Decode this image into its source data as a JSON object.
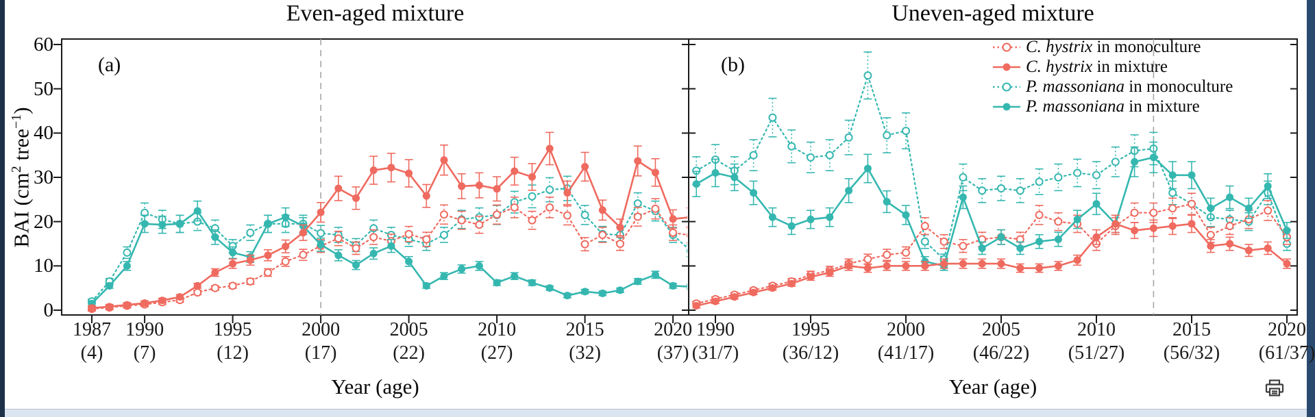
{
  "titles": {
    "panel_a": "Even-aged mixture",
    "panel_b": "Uneven-aged mixture"
  },
  "panel_labels": {
    "a": "(a)",
    "b": "(b)"
  },
  "axes": {
    "ylabel": {
      "pre": "BAI  (cm",
      "sup1": "2",
      "mid": " tree",
      "sup2": "−1",
      "post": ")"
    },
    "xlabel": "Year (age)",
    "y_ticks": [
      0,
      10,
      20,
      30,
      40,
      50,
      60
    ],
    "y_range": [
      0,
      60
    ]
  },
  "colors": {
    "c_hystrix": "#ef6a5f",
    "p_massoniana": "#35b7b0",
    "dashed_guide": "#a6a6a6",
    "axis": "#1a1a1a"
  },
  "legend": {
    "items": [
      {
        "species": "C. hystrix",
        "rest": " in monoculture",
        "color": "#ef6a5f",
        "marker": "open",
        "line": "dotted"
      },
      {
        "species": "C. hystrix",
        "rest": " in mixture",
        "color": "#ef6a5f",
        "marker": "filled",
        "line": "solid"
      },
      {
        "species": "P. massoniana",
        "rest": " in monoculture",
        "color": "#35b7b0",
        "marker": "open",
        "line": "dotted"
      },
      {
        "species": "P. massoniana",
        "rest": " in mixture",
        "color": "#35b7b0",
        "marker": "filled",
        "line": "solid"
      }
    ]
  },
  "chart_data": [
    {
      "type": "line",
      "panel": "a",
      "title": "Even-aged mixture",
      "ylabel": "BAI (cm2 tree-1)",
      "xlabel": "Year (age)",
      "ylim": [
        0,
        60
      ],
      "grid": false,
      "dashed_line_year": 2000,
      "x_tick_years": [
        1987,
        1990,
        1995,
        2000,
        2005,
        2010,
        2015,
        2020
      ],
      "x_tick_ages": [
        "(4)",
        "(7)",
        "(12)",
        "(17)",
        "(22)",
        "(27)",
        "(32)",
        "(37)"
      ],
      "years": [
        1987,
        1988,
        1989,
        1990,
        1991,
        1992,
        1993,
        1994,
        1995,
        1996,
        1997,
        1998,
        1999,
        2000,
        2001,
        2002,
        2003,
        2004,
        2005,
        2006,
        2007,
        2008,
        2009,
        2010,
        2011,
        2012,
        2013,
        2014,
        2015,
        2016,
        2017,
        2018,
        2019,
        2020,
        2021
      ],
      "series": [
        {
          "name": "C. hystrix in monoculture",
          "color": "#ef6a5f",
          "marker": "open",
          "line": "dotted",
          "values": [
            0.3,
            0.6,
            1.0,
            1.3,
            1.8,
            2.3,
            4.0,
            5.0,
            5.5,
            6.5,
            8.5,
            11.0,
            12.5,
            14.5,
            16.2,
            14.0,
            16.5,
            15.6,
            17.2,
            16.0,
            21.6,
            20.3,
            19.3,
            21.6,
            23.2,
            20.3,
            23.2,
            21.4,
            14.9,
            17.0,
            15.0,
            21.1,
            22.9,
            17.5,
            16.9
          ]
        },
        {
          "name": "C. hystrix in mixture",
          "color": "#ef6a5f",
          "marker": "filled",
          "line": "solid",
          "values": [
            0.5,
            0.8,
            1.2,
            1.6,
            2.2,
            3.0,
            5.5,
            8.5,
            10.5,
            11.3,
            12.4,
            14.4,
            17.5,
            22.1,
            27.5,
            25.3,
            31.6,
            32.2,
            30.9,
            25.8,
            33.9,
            28.0,
            28.2,
            27.4,
            31.4,
            30.1,
            36.5,
            26.5,
            32.4,
            22.6,
            18.7,
            33.7,
            31.1,
            20.6,
            21.0
          ]
        },
        {
          "name": "P. massoniana in monoculture",
          "color": "#35b7b0",
          "marker": "open",
          "line": "dotted",
          "values": [
            2.0,
            6.5,
            13.0,
            22.0,
            20.5,
            19.5,
            20.0,
            18.5,
            14.5,
            17.5,
            19.5,
            19.5,
            19.5,
            17.4,
            17.0,
            14.7,
            18.5,
            17.0,
            16.0,
            15.0,
            17.0,
            20.5,
            21.0,
            21.5,
            24.4,
            25.7,
            27.2,
            27.5,
            21.5,
            17.2,
            17.0,
            24.1,
            22.4,
            17.0,
            13.4
          ]
        },
        {
          "name": "P. massoniana in mixture",
          "color": "#35b7b0",
          "marker": "filled",
          "line": "solid",
          "values": [
            1.5,
            5.5,
            10.0,
            19.5,
            19.3,
            19.5,
            22.4,
            16.5,
            13.0,
            12.0,
            19.5,
            21.0,
            19.0,
            14.8,
            12.4,
            10.2,
            12.8,
            14.5,
            11.0,
            5.5,
            7.7,
            9.3,
            10.0,
            6.2,
            7.7,
            6.2,
            5.0,
            3.3,
            4.2,
            3.8,
            4.5,
            6.5,
            8.0,
            5.5,
            5.3
          ]
        }
      ],
      "error_bars": {
        "fraction": 0.1,
        "min": 0.5
      }
    },
    {
      "type": "line",
      "panel": "b",
      "title": "Uneven-aged mixture",
      "ylabel": "BAI (cm2 tree-1)",
      "xlabel": "Year (age)",
      "ylim": [
        0,
        60
      ],
      "grid": false,
      "dashed_line_year": 2013,
      "x_tick_years": [
        1990,
        1995,
        2000,
        2005,
        2010,
        2015,
        2020
      ],
      "x_tick_ages": [
        "(31/7)",
        "(36/12)",
        "(41/17)",
        "(46/22)",
        "(51/27)",
        "(56/32)",
        "(61/37)"
      ],
      "years": [
        1989,
        1990,
        1991,
        1992,
        1993,
        1994,
        1995,
        1996,
        1997,
        1998,
        1999,
        2000,
        2001,
        2002,
        2003,
        2004,
        2005,
        2006,
        2007,
        2008,
        2009,
        2010,
        2011,
        2012,
        2013,
        2014,
        2015,
        2016,
        2017,
        2018,
        2019,
        2020
      ],
      "series": [
        {
          "name": "C. hystrix in monoculture",
          "color": "#ef6a5f",
          "marker": "open",
          "line": "dotted",
          "values": [
            1.5,
            2.5,
            3.5,
            4.5,
            5.5,
            6.5,
            8.0,
            9.0,
            10.5,
            11.5,
            12.5,
            13.0,
            19.0,
            15.5,
            14.5,
            16.0,
            16.5,
            16.0,
            21.5,
            20.0,
            19.5,
            15.0,
            19.0,
            22.0,
            22.0,
            23.0,
            24.0,
            17.0,
            19.0,
            20.5,
            22.5,
            16.5
          ]
        },
        {
          "name": "C. hystrix in mixture",
          "color": "#ef6a5f",
          "marker": "filled",
          "line": "solid",
          "values": [
            1.0,
            2.0,
            3.0,
            4.0,
            5.0,
            6.0,
            7.5,
            8.5,
            10.0,
            9.5,
            10.0,
            10.0,
            10.0,
            10.5,
            10.5,
            10.5,
            10.5,
            9.5,
            9.5,
            10.0,
            11.3,
            16.5,
            19.5,
            18.0,
            18.5,
            19.0,
            19.5,
            14.5,
            15.0,
            13.5,
            14.0,
            10.5
          ]
        },
        {
          "name": "P. massoniana in monoculture",
          "color": "#35b7b0",
          "marker": "open",
          "line": "dotted",
          "values": [
            31.5,
            34.0,
            31.5,
            35.0,
            43.5,
            37.0,
            34.5,
            35.0,
            39.0,
            53.0,
            39.5,
            40.5,
            15.5,
            11.5,
            30.0,
            27.0,
            27.5,
            27.0,
            29.0,
            30.0,
            31.0,
            30.5,
            33.5,
            36.0,
            36.5,
            26.5,
            24.0,
            21.0,
            20.5,
            20.0,
            26.5,
            15.0
          ]
        },
        {
          "name": "P. massoniana in mixture",
          "color": "#35b7b0",
          "marker": "filled",
          "line": "solid",
          "values": [
            28.5,
            31.0,
            30.0,
            26.5,
            21.0,
            19.0,
            20.5,
            21.0,
            27.0,
            32.0,
            24.5,
            21.5,
            11.0,
            10.0,
            25.5,
            14.0,
            16.5,
            14.0,
            15.5,
            16.0,
            20.5,
            24.0,
            19.5,
            33.5,
            34.5,
            30.5,
            30.5,
            23.0,
            25.5,
            23.0,
            28.0,
            18.0
          ]
        }
      ],
      "error_bars": {
        "fraction": 0.1,
        "min": 0.5
      }
    }
  ],
  "icons": {
    "bottom_right": "printer-icon"
  }
}
